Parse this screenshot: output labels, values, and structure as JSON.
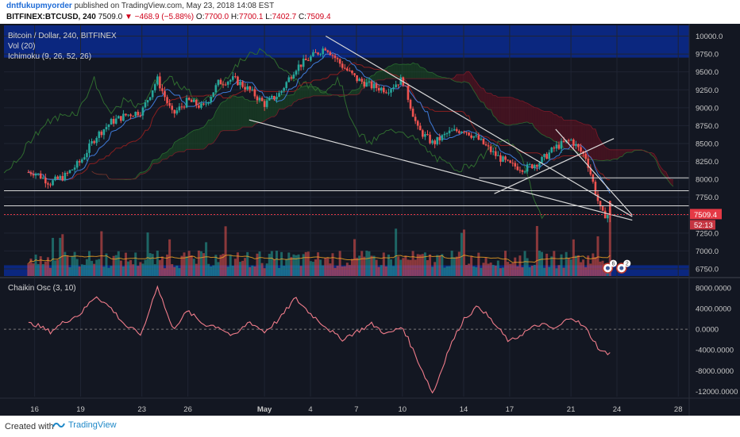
{
  "header": {
    "user": "dntfukupmyorder",
    "published": "published on TradingView.com, May 23, 2018 14:08 EST",
    "symbol": "BITFINEX:BTCUSD, 240",
    "last": "7509.0",
    "change": "−468.9 (−5.88%)",
    "o_label": "O:",
    "o_val": "7700.0",
    "h_label": "H:",
    "h_val": "7700.1",
    "l_label": "L:",
    "l_val": "7402.7",
    "c_label": "C:",
    "c_val": "7509.4"
  },
  "footer": {
    "created": "Created with",
    "brand": "TradingView"
  },
  "colors": {
    "bg": "#131722",
    "up": "#26a69a",
    "down": "#ef5350",
    "tenkan": "#3f7bd9",
    "kijun": "#8b1f1f",
    "lagging": "#2f6b2f",
    "kumo_bull": "#1d5a25",
    "kumo_bear": "#7a1020",
    "osc": "#f07c8a",
    "trend": "#d8d8d8",
    "price_tag": "#e53945",
    "band": "#0b2a8f"
  },
  "chart_data": [
    {
      "type": "candlestick",
      "title": "Bitcoin / Dollar, 240, BITFINEX",
      "indicators": [
        "Vol (20)",
        "Ichimoku (9, 26, 52, 26)"
      ],
      "ylim": [
        6650,
        10150
      ],
      "y_ticks": [
        "10000.0",
        "9750.0",
        "9500.0",
        "9250.0",
        "9000.0",
        "8750.0",
        "8500.0",
        "8250.0",
        "8000.0",
        "7750.0",
        "7500.0",
        "7250.0",
        "7000.0",
        "6750.0"
      ],
      "x_ticks": [
        "16",
        "19",
        "23",
        "26",
        "May",
        "4",
        "7",
        "10",
        "14",
        "17",
        "21",
        "24",
        "28"
      ],
      "last_price": "7509.4",
      "countdown": "52:13",
      "event_badges": [
        "6",
        "2"
      ],
      "approx_close_path": [
        {
          "date": "2018-04-16",
          "close": 8100
        },
        {
          "date": "2018-04-17",
          "close": 7950
        },
        {
          "date": "2018-04-18",
          "close": 8050
        },
        {
          "date": "2018-04-19",
          "close": 8250
        },
        {
          "date": "2018-04-20",
          "close": 8600
        },
        {
          "date": "2018-04-21",
          "close": 8800
        },
        {
          "date": "2018-04-22",
          "close": 8900
        },
        {
          "date": "2018-04-23",
          "close": 8950
        },
        {
          "date": "2018-04-24",
          "close": 9400
        },
        {
          "date": "2018-04-25",
          "close": 8900
        },
        {
          "date": "2018-04-26",
          "close": 9100
        },
        {
          "date": "2018-04-27",
          "close": 9000
        },
        {
          "date": "2018-04-28",
          "close": 9350
        },
        {
          "date": "2018-04-29",
          "close": 9400
        },
        {
          "date": "2018-04-30",
          "close": 9250
        },
        {
          "date": "2018-05-01",
          "close": 9050
        },
        {
          "date": "2018-05-02",
          "close": 9200
        },
        {
          "date": "2018-05-03",
          "close": 9550
        },
        {
          "date": "2018-05-04",
          "close": 9700
        },
        {
          "date": "2018-05-05",
          "close": 9850
        },
        {
          "date": "2018-05-06",
          "close": 9600
        },
        {
          "date": "2018-05-07",
          "close": 9400
        },
        {
          "date": "2018-05-08",
          "close": 9300
        },
        {
          "date": "2018-05-09",
          "close": 9250
        },
        {
          "date": "2018-05-10",
          "close": 9400
        },
        {
          "date": "2018-05-11",
          "close": 8700
        },
        {
          "date": "2018-05-12",
          "close": 8500
        },
        {
          "date": "2018-05-13",
          "close": 8650
        },
        {
          "date": "2018-05-14",
          "close": 8700
        },
        {
          "date": "2018-05-15",
          "close": 8550
        },
        {
          "date": "2018-05-16",
          "close": 8350
        },
        {
          "date": "2018-05-17",
          "close": 8200
        },
        {
          "date": "2018-05-18",
          "close": 8150
        },
        {
          "date": "2018-05-19",
          "close": 8250
        },
        {
          "date": "2018-05-20",
          "close": 8450
        },
        {
          "date": "2018-05-21",
          "close": 8550
        },
        {
          "date": "2018-05-22",
          "close": 8300
        },
        {
          "date": "2018-05-23",
          "close": 7509
        }
      ]
    },
    {
      "type": "line",
      "title": "Chaikin Osc (3, 10)",
      "ylim": [
        -13000,
        9500
      ],
      "y_ticks": [
        "8000.0000",
        "4000.0000",
        "0.0000",
        "-4000.0000",
        "-8000.0000",
        "-12000.0000"
      ],
      "approx_values": [
        {
          "date": "2018-04-16",
          "value": 1000
        },
        {
          "date": "2018-04-17",
          "value": -500
        },
        {
          "date": "2018-04-18",
          "value": 1500
        },
        {
          "date": "2018-04-19",
          "value": 3000
        },
        {
          "date": "2018-04-20",
          "value": 6500
        },
        {
          "date": "2018-04-21",
          "value": 4000
        },
        {
          "date": "2018-04-22",
          "value": 500
        },
        {
          "date": "2018-04-23",
          "value": -1000
        },
        {
          "date": "2018-04-24",
          "value": 8500
        },
        {
          "date": "2018-04-25",
          "value": 0
        },
        {
          "date": "2018-04-26",
          "value": 3500
        },
        {
          "date": "2018-04-27",
          "value": 1000
        },
        {
          "date": "2018-04-28",
          "value": 500
        },
        {
          "date": "2018-04-29",
          "value": -1500
        },
        {
          "date": "2018-04-30",
          "value": 1500
        },
        {
          "date": "2018-05-01",
          "value": -500
        },
        {
          "date": "2018-05-02",
          "value": 2000
        },
        {
          "date": "2018-05-03",
          "value": 6000
        },
        {
          "date": "2018-05-04",
          "value": 3000
        },
        {
          "date": "2018-05-05",
          "value": 500
        },
        {
          "date": "2018-05-06",
          "value": -2000
        },
        {
          "date": "2018-05-07",
          "value": -500
        },
        {
          "date": "2018-05-08",
          "value": 1000
        },
        {
          "date": "2018-05-09",
          "value": -1000
        },
        {
          "date": "2018-05-10",
          "value": 500
        },
        {
          "date": "2018-05-11",
          "value": -6000
        },
        {
          "date": "2018-05-12",
          "value": -12500
        },
        {
          "date": "2018-05-13",
          "value": -4000
        },
        {
          "date": "2018-05-14",
          "value": 2000
        },
        {
          "date": "2018-05-15",
          "value": 4500
        },
        {
          "date": "2018-05-16",
          "value": 1000
        },
        {
          "date": "2018-05-17",
          "value": -2500
        },
        {
          "date": "2018-05-18",
          "value": -500
        },
        {
          "date": "2018-05-19",
          "value": 1000
        },
        {
          "date": "2018-05-20",
          "value": 0
        },
        {
          "date": "2018-05-21",
          "value": 2500
        },
        {
          "date": "2018-05-22",
          "value": 0
        },
        {
          "date": "2018-05-23",
          "value": -4500
        }
      ]
    }
  ]
}
